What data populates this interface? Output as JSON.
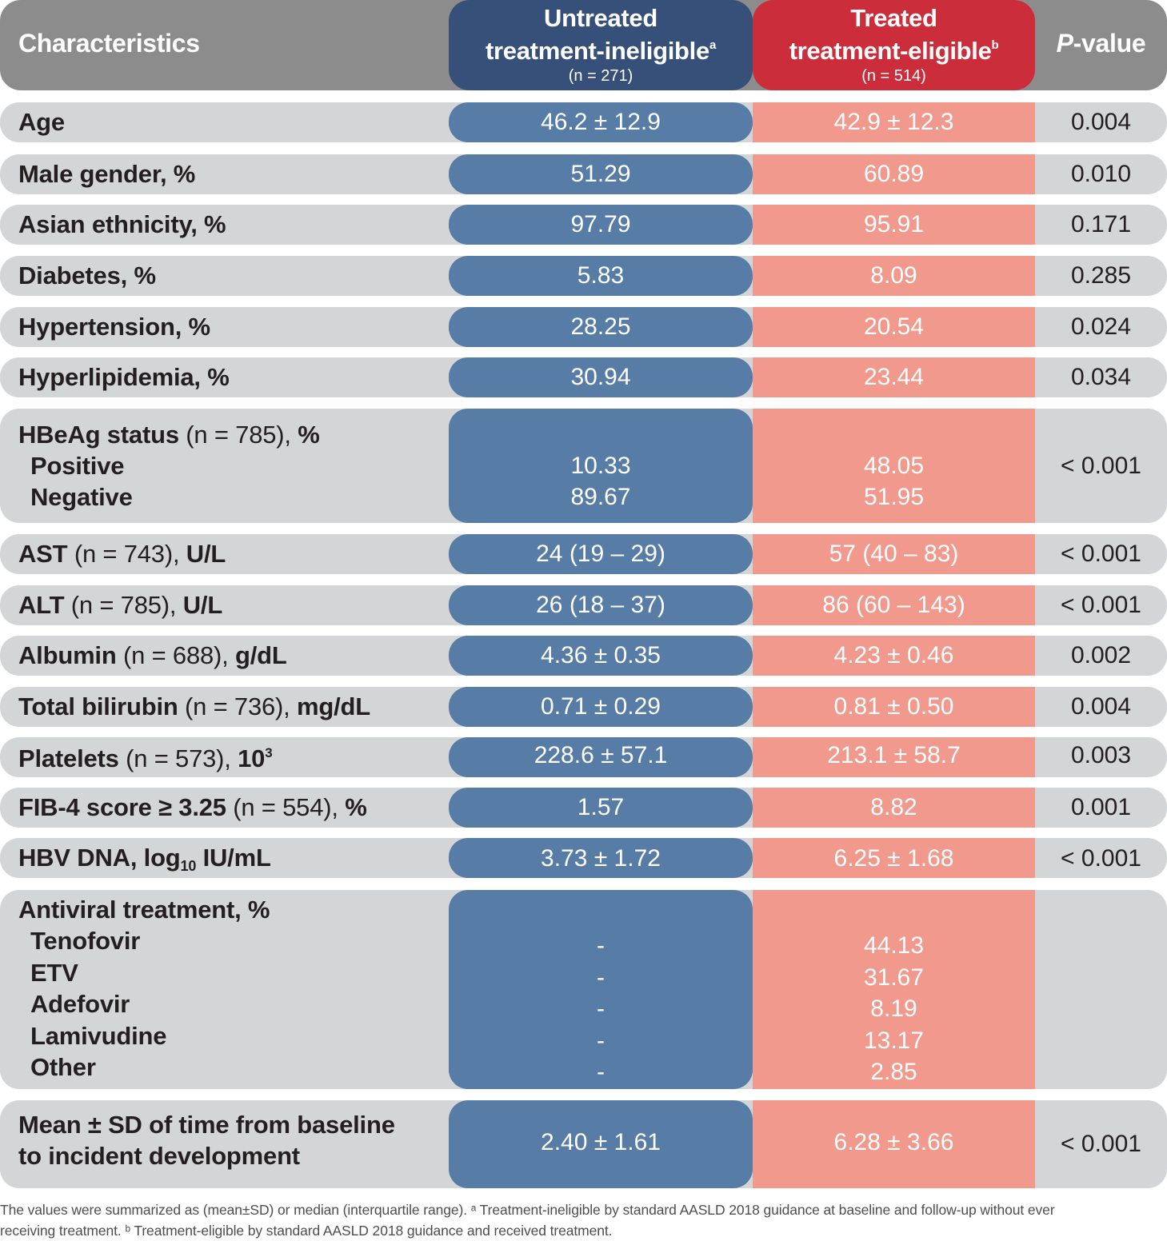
{
  "header": {
    "characteristics": "Characteristics",
    "untreated_line1": "Untreated",
    "untreated_line2": "treatment-ineligible",
    "untreated_sup": "a",
    "untreated_n": "(n = 271)",
    "treated_line1": "Treated",
    "treated_line2": "treatment-eligible",
    "treated_sup": "b",
    "treated_n": "(n = 514)",
    "pvalue_italic": "P",
    "pvalue_rest": "-value"
  },
  "rows": {
    "age": {
      "label": "Age",
      "u": "46.2 ± 12.9",
      "t": "42.9 ± 12.3",
      "p": "0.004"
    },
    "male": {
      "label": "Male gender, %",
      "u": "51.29",
      "t": "60.89",
      "p": "0.010"
    },
    "asian": {
      "label": "Asian ethnicity, %",
      "u": "97.79",
      "t": "95.91",
      "p": "0.171"
    },
    "diabetes": {
      "label": "Diabetes, %",
      "u": "5.83",
      "t": "8.09",
      "p": "0.285"
    },
    "hypertension": {
      "label": "Hypertension, %",
      "u": "28.25",
      "t": "20.54",
      "p": "0.024"
    },
    "hyperlipidemia": {
      "label": "Hyperlipidemia, %",
      "u": "30.94",
      "t": "23.44",
      "p": "0.034"
    },
    "hbeag": {
      "label_bold": "HBeAg status",
      "label_norm": " (n = 785), ",
      "label_bold2": "%",
      "sub1": "Positive",
      "sub2": "Negative",
      "u1": "10.33",
      "u2": "89.67",
      "t1": "48.05",
      "t2": "51.95",
      "p": "< 0.001"
    },
    "ast": {
      "label_bold": "AST",
      "label_norm": " (n = 743), ",
      "label_bold2": "U/L",
      "u": "24 (19 – 29)",
      "t": "57 (40 – 83)",
      "p": "< 0.001"
    },
    "alt": {
      "label_bold": "ALT",
      "label_norm": " (n = 785), ",
      "label_bold2": "U/L",
      "u": "26 (18 – 37)",
      "t": "86 (60 – 143)",
      "p": "< 0.001"
    },
    "albumin": {
      "label_bold": "Albumin",
      "label_norm": " (n = 688), ",
      "label_bold2": "g/dL",
      "u": "4.36 ± 0.35",
      "t": "4.23 ± 0.46",
      "p": "0.002"
    },
    "bilirubin": {
      "label_bold": "Total bilirubin",
      "label_norm": " (n = 736), ",
      "label_bold2": "mg/dL",
      "u": "0.71 ± 0.29",
      "t": "0.81 ± 0.50",
      "p": "0.004"
    },
    "platelets": {
      "label_bold": "Platelets",
      "label_norm": " (n = 573), ",
      "label_bold2": "10",
      "label_sup": "3",
      "u": "228.6 ± 57.1",
      "t": "213.1 ± 58.7",
      "p": "0.003"
    },
    "fib4": {
      "label_bold": "FIB-4 score ≥ 3.25",
      "label_norm": " (n = 554), ",
      "label_bold2": "%",
      "u": "1.57",
      "t": "8.82",
      "p": "0.001"
    },
    "hbvdna": {
      "label_bold": "HBV DNA, log",
      "label_sub": "10",
      "label_bold2": " IU/mL",
      "u": "3.73 ± 1.72",
      "t": "6.25 ± 1.68",
      "p": "< 0.001"
    },
    "antiviral": {
      "label": "Antiviral treatment, %",
      "subs": [
        "Tenofovir",
        "ETV",
        "Adefovir",
        "Lamivudine",
        "Other"
      ],
      "u": [
        "-",
        "-",
        "-",
        "-",
        "-"
      ],
      "t": [
        "44.13",
        "31.67",
        "8.19",
        "13.17",
        "2.85"
      ]
    },
    "time": {
      "label1": "Mean ± SD of time from baseline",
      "label2": "to incident development",
      "u": "2.40 ± 1.61",
      "t": "6.28 ± 3.66",
      "p": "< 0.001"
    }
  },
  "footnote": {
    "line1": "The values were summarized as (mean±SD) or median (interquartile range). ᵃ Treatment-ineligible by standard AASLD 2018 guidance at baseline and follow-up without ever",
    "line2": "receiving treatment. ᵇ Treatment-eligible by standard AASLD 2018 guidance and received treatment."
  },
  "colors": {
    "header_gray": "#8c8c8c",
    "row_gray": "#d4d5d6",
    "untreated_header": "#36507a",
    "untreated_cell": "#577ca6",
    "treated_header": "#cc2d3b",
    "treated_cell": "#f1998c"
  }
}
